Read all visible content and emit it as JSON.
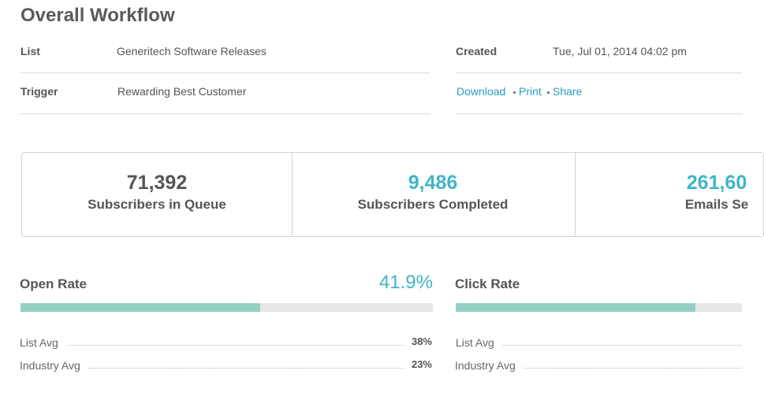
{
  "header": {
    "title": "Overall Workflow"
  },
  "details": {
    "list": {
      "label": "List",
      "value": "Generitech Software Releases"
    },
    "trigger": {
      "label": "Trigger",
      "value": "Rewarding Best Customer"
    },
    "created": {
      "label": "Created",
      "value": "Tue, Jul 01, 2014 04:02 pm"
    },
    "links": [
      "Download",
      "Print",
      "Share"
    ]
  },
  "stats": [
    {
      "value": "71,392",
      "label": "Subscribers in Queue"
    },
    {
      "value": "9,486",
      "label": "Subscribers Completed"
    },
    {
      "value": "261,60",
      "label": "Emails Se"
    }
  ],
  "rates": [
    {
      "label": "Open Rate",
      "value": "41.9%",
      "list_avg": {
        "label": "List Avg",
        "value": "38%"
      },
      "industry_avg": {
        "label": "Industry Avg",
        "value": "23%"
      }
    },
    {
      "label": "Click Rate",
      "list_avg": {
        "label": "List Avg"
      },
      "industry_avg": {
        "label": "Industry Avg"
      }
    }
  ]
}
